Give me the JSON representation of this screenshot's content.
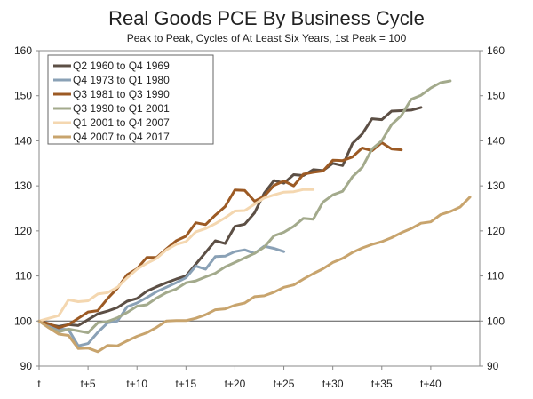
{
  "chart_data": {
    "type": "line",
    "title": "Real Goods PCE By Business Cycle",
    "subtitle": "Peak to Peak, Cycles of At Least Six Years, 1st Peak = 100",
    "xlabel": "",
    "ylabel": "",
    "xlim": [
      0,
      45
    ],
    "ylim": [
      90,
      160
    ],
    "x_ticks": [
      {
        "value": 0,
        "label": "t"
      },
      {
        "value": 5,
        "label": "t+5"
      },
      {
        "value": 10,
        "label": "t+10"
      },
      {
        "value": 15,
        "label": "t+15"
      },
      {
        "value": 20,
        "label": "t+20"
      },
      {
        "value": 25,
        "label": "t+25"
      },
      {
        "value": 30,
        "label": "t+30"
      },
      {
        "value": 35,
        "label": "t+35"
      },
      {
        "value": 40,
        "label": "t+40"
      }
    ],
    "y_ticks": [
      90,
      100,
      110,
      120,
      130,
      140,
      150,
      160
    ],
    "y_axis_right": true,
    "reference_line": 100,
    "grid": false,
    "legend_position": "top-left",
    "series": [
      {
        "name": "Q2 1960 to Q4 1969",
        "color": "#5c4f45",
        "values": [
          100,
          99.2,
          98.8,
          99.2,
          99.0,
          100.3,
          101.6,
          102.2,
          103.0,
          104.4,
          105.0,
          106.6,
          107.6,
          108.5,
          109.3,
          110.0,
          112.6,
          115.2,
          117.8,
          117.2,
          121.0,
          121.5,
          124.0,
          128.4,
          131.2,
          130.6,
          132.5,
          132.3,
          133.6,
          133.4,
          135.0,
          134.5,
          139.4,
          141.5,
          144.9,
          144.7,
          146.6,
          146.7,
          146.8,
          147.4
        ]
      },
      {
        "name": "Q4 1973 to Q1 1980",
        "color": "#8aa1b6",
        "values": [
          100,
          99.0,
          98.2,
          98.1,
          94.5,
          95.0,
          97.5,
          99.6,
          100.0,
          103.2,
          104.0,
          105.2,
          106.5,
          107.5,
          108.5,
          109.6,
          112.2,
          111.5,
          114.3,
          114.4,
          115.4,
          115.8,
          115.0,
          116.6,
          116.1,
          115.4
        ]
      },
      {
        "name": "Q3 1981 to Q3 1990",
        "color": "#9c5a24",
        "values": [
          100,
          99.4,
          98.5,
          99.2,
          100.6,
          102.0,
          102.3,
          105.0,
          107.3,
          110.3,
          111.6,
          114.1,
          114.1,
          116.0,
          117.8,
          118.8,
          121.8,
          121.4,
          123.5,
          125.4,
          129.1,
          129.0,
          126.6,
          127.7,
          130.1,
          131.1,
          130.0,
          132.6,
          133.0,
          133.3,
          135.7,
          135.6,
          136.4,
          138.4,
          137.8,
          139.6,
          138.2,
          138.0
        ]
      },
      {
        "name": "Q3 1990 to Q1 2001",
        "color": "#a3aa8c",
        "values": [
          100,
          98.5,
          97.6,
          98.2,
          97.8,
          97.4,
          99.6,
          99.9,
          100.7,
          101.9,
          103.3,
          103.6,
          105.1,
          106.3,
          107.1,
          108.5,
          108.9,
          109.8,
          110.6,
          112.0,
          113.0,
          114.0,
          115.0,
          116.4,
          118.9,
          119.7,
          121.0,
          122.8,
          122.6,
          126.4,
          128.0,
          128.8,
          132.0,
          134.1,
          138.2,
          140.0,
          143.6,
          145.6,
          149.2,
          150.1,
          151.7,
          152.9,
          153.3
        ]
      },
      {
        "name": "Q1 2001 to Q4 2007",
        "color": "#f4d7b0",
        "values": [
          100,
          100.6,
          101.2,
          104.7,
          104.3,
          104.5,
          106.0,
          106.3,
          107.5,
          109.6,
          111.5,
          112.8,
          113.9,
          115.8,
          117.0,
          117.6,
          119.8,
          120.5,
          121.6,
          122.9,
          124.4,
          124.5,
          125.9,
          127.3,
          128.0,
          128.6,
          128.7,
          129.2,
          129.2
        ]
      },
      {
        "name": "Q4 2007 to Q4 2017",
        "color": "#c8a46d",
        "values": [
          100,
          98.5,
          97.1,
          96.8,
          93.9,
          94.0,
          93.2,
          94.6,
          94.5,
          95.6,
          96.6,
          97.4,
          98.6,
          100.0,
          100.1,
          100.1,
          100.6,
          101.4,
          102.5,
          102.7,
          103.5,
          104.0,
          105.4,
          105.6,
          106.4,
          107.5,
          108.0,
          109.3,
          110.5,
          111.6,
          113.0,
          113.9,
          115.2,
          116.2,
          117.0,
          117.6,
          118.5,
          119.6,
          120.5,
          121.7,
          122.0,
          123.6,
          124.3,
          125.3,
          127.5
        ]
      }
    ]
  }
}
